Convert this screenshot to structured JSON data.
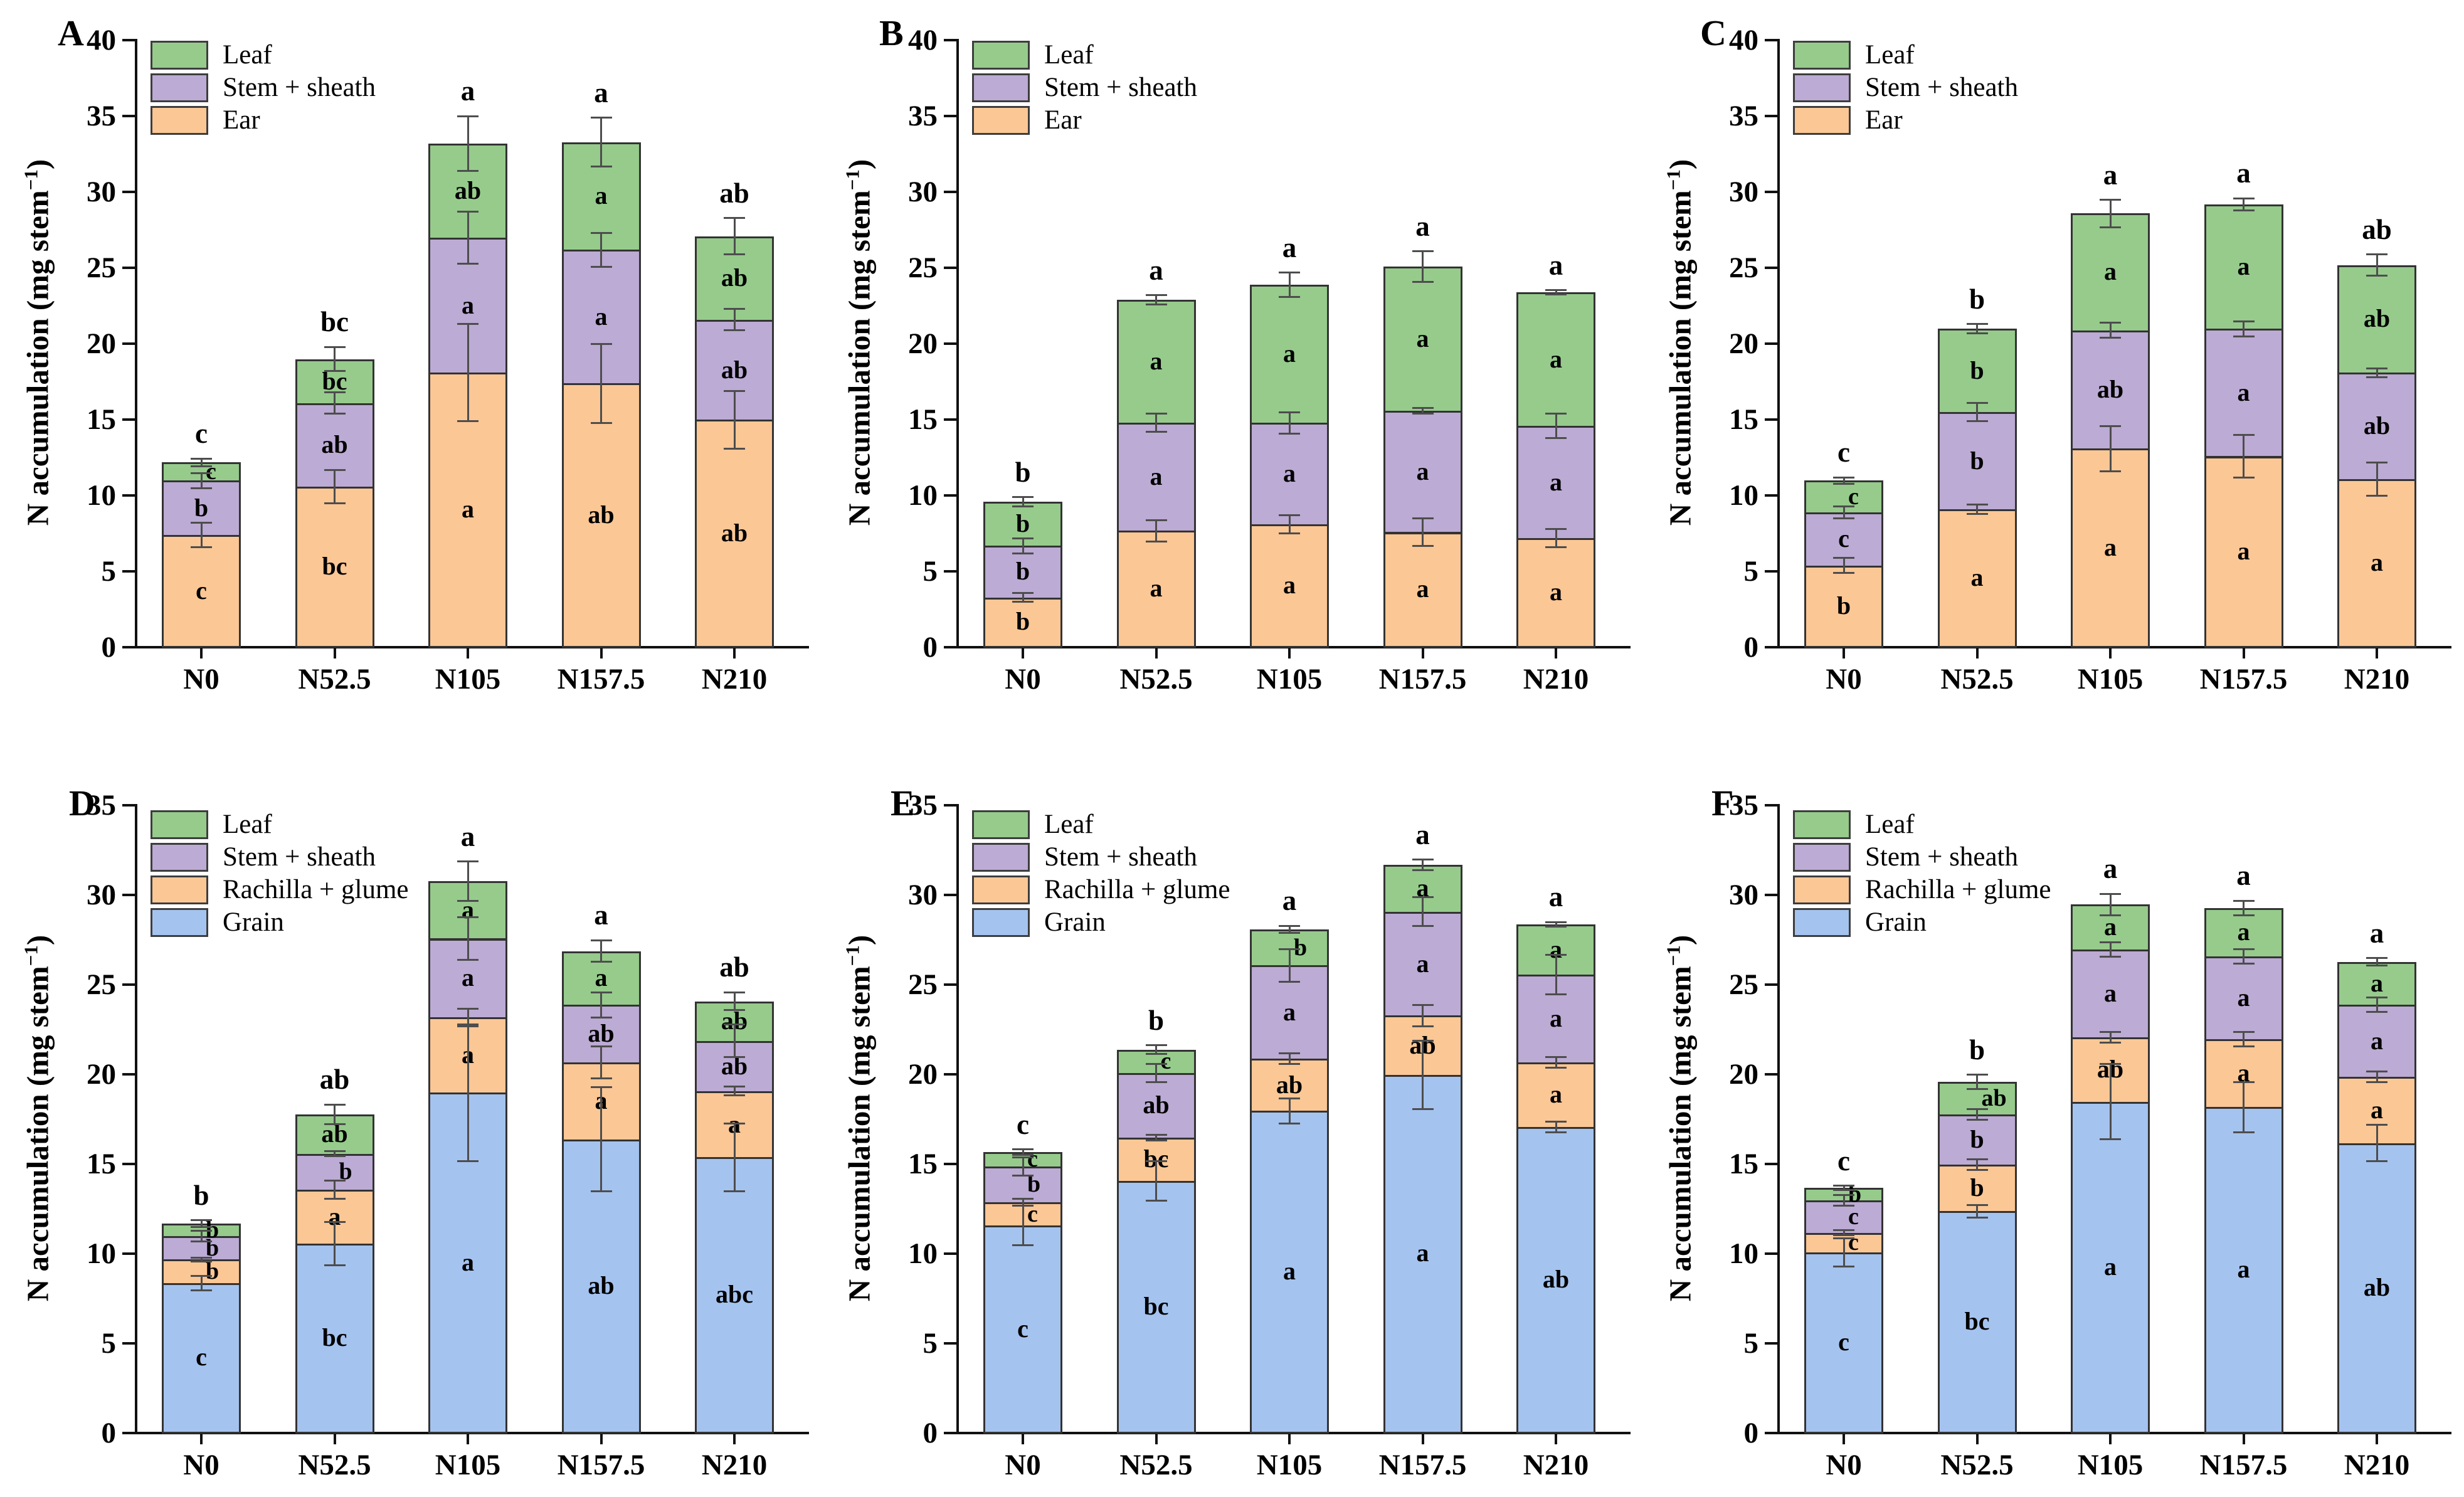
{
  "figure": {
    "background": "#ffffff"
  },
  "colors": {
    "leaf": "#96cb8c",
    "stem_sheath": "#bcabd4",
    "ear": "#fbc795",
    "rachilla_glume": "#fbc795",
    "grain": "#a5c3ef",
    "bar_border": "#333333",
    "axis": "#111111",
    "error_bar": "#4d4d4d",
    "text": "#000000"
  },
  "ylabel": {
    "pre": "N accumulation (mg stem",
    "sup": "−1",
    "post": ")",
    "full": "N accumulation (mg stem⁻¹)"
  },
  "categories": [
    "N0",
    "N52.5",
    "N105",
    "N157.5",
    "N210"
  ],
  "chart_data": [
    {
      "panel": "A",
      "type": "bar",
      "stacked": true,
      "grid": false,
      "ylim": [
        0,
        40
      ],
      "ytick_step": 5,
      "legend_position": "top-left",
      "legend": [
        "Leaf",
        "Stem + sheath",
        "Ear"
      ],
      "categories": [
        "N0",
        "N52.5",
        "N105",
        "N157.5",
        "N210"
      ],
      "series": [
        {
          "name": "Ear",
          "color_key": "ear",
          "values": [
            7.3,
            10.5,
            18.0,
            17.3,
            14.9
          ],
          "errors": [
            0.8,
            1.1,
            3.2,
            2.6,
            1.9
          ],
          "letters": [
            "c",
            "bc",
            "a",
            "ab",
            "ab"
          ]
        },
        {
          "name": "Stem + sheath",
          "color_key": "stem_sheath",
          "values": [
            3.6,
            5.5,
            8.9,
            8.8,
            6.6
          ],
          "errors": [
            0.5,
            0.7,
            1.7,
            1.1,
            0.7
          ],
          "letters": [
            "b",
            "ab",
            "a",
            "a",
            "ab"
          ]
        },
        {
          "name": "Leaf",
          "color_key": "leaf",
          "values": [
            1.2,
            2.9,
            6.2,
            7.1,
            5.5
          ],
          "errors": [
            0.25,
            0.8,
            1.8,
            1.6,
            1.2
          ],
          "letters": [
            "c",
            "bc",
            "ab",
            "a",
            "ab"
          ]
        }
      ],
      "total_values": [
        12.1,
        18.9,
        33.1,
        33.2,
        27.0
      ],
      "total_letters": [
        "c",
        "bc",
        "a",
        "a",
        "ab"
      ]
    },
    {
      "panel": "B",
      "type": "bar",
      "stacked": true,
      "grid": false,
      "ylim": [
        0,
        40
      ],
      "ytick_step": 5,
      "legend_position": "top-left",
      "legend": [
        "Leaf",
        "Stem + sheath",
        "Ear"
      ],
      "categories": [
        "N0",
        "N52.5",
        "N105",
        "N157.5",
        "N210"
      ],
      "series": [
        {
          "name": "Ear",
          "color_key": "ear",
          "values": [
            3.2,
            7.6,
            8.0,
            7.5,
            7.1
          ],
          "errors": [
            0.3,
            0.7,
            0.6,
            0.9,
            0.6
          ],
          "letters": [
            "b",
            "a",
            "a",
            "a",
            "a"
          ]
        },
        {
          "name": "Stem + sheath",
          "color_key": "stem_sheath",
          "values": [
            3.4,
            7.1,
            6.7,
            8.0,
            7.4
          ],
          "errors": [
            0.5,
            0.6,
            0.7,
            0.2,
            0.8
          ],
          "letters": [
            "b",
            "a",
            "a",
            "a",
            "a"
          ]
        },
        {
          "name": "Leaf",
          "color_key": "leaf",
          "values": [
            2.9,
            8.1,
            9.1,
            9.5,
            8.8
          ],
          "errors": [
            0.3,
            0.3,
            0.8,
            1.0,
            0.15
          ],
          "letters": [
            "b",
            "a",
            "a",
            "a",
            "a"
          ]
        }
      ],
      "total_values": [
        9.5,
        22.8,
        23.8,
        25.0,
        23.3
      ],
      "total_letters": [
        "b",
        "a",
        "a",
        "a",
        "a"
      ]
    },
    {
      "panel": "C",
      "type": "bar",
      "stacked": true,
      "grid": false,
      "ylim": [
        0,
        40
      ],
      "ytick_step": 5,
      "legend_position": "top-left",
      "legend": [
        "Leaf",
        "Stem + sheath",
        "Ear"
      ],
      "categories": [
        "N0",
        "N52.5",
        "N105",
        "N157.5",
        "N210"
      ],
      "series": [
        {
          "name": "Ear",
          "color_key": "ear",
          "values": [
            5.3,
            9.0,
            13.0,
            12.5,
            11.0
          ],
          "errors": [
            0.5,
            0.3,
            1.5,
            1.4,
            1.1
          ],
          "letters": [
            "b",
            "a",
            "a",
            "a",
            "a"
          ]
        },
        {
          "name": "Stem + sheath",
          "color_key": "stem_sheath",
          "values": [
            3.5,
            6.4,
            7.8,
            8.4,
            7.0
          ],
          "errors": [
            0.4,
            0.6,
            0.5,
            0.5,
            0.3
          ],
          "letters": [
            "c",
            "b",
            "ab",
            "a",
            "ab"
          ]
        },
        {
          "name": "Leaf",
          "color_key": "leaf",
          "values": [
            2.1,
            5.5,
            7.7,
            8.2,
            7.1
          ],
          "errors": [
            0.2,
            0.3,
            0.9,
            0.4,
            0.7
          ],
          "letters": [
            "c",
            "b",
            "a",
            "a",
            "ab"
          ]
        }
      ],
      "total_values": [
        10.9,
        20.9,
        28.5,
        29.1,
        25.1
      ],
      "total_letters": [
        "c",
        "b",
        "a",
        "a",
        "ab"
      ]
    },
    {
      "panel": "D",
      "type": "bar",
      "stacked": true,
      "grid": false,
      "ylim": [
        0,
        35
      ],
      "ytick_step": 5,
      "legend_position": "top-left",
      "legend": [
        "Leaf",
        "Stem + sheath",
        "Rachilla + glume",
        "Grain"
      ],
      "categories": [
        "N0",
        "N52.5",
        "N105",
        "N157.5",
        "N210"
      ],
      "series": [
        {
          "name": "Grain",
          "color_key": "grain",
          "values": [
            8.3,
            10.5,
            18.9,
            16.3,
            15.3
          ],
          "errors": [
            0.4,
            1.2,
            3.8,
            2.9,
            1.9
          ],
          "letters": [
            "c",
            "bc",
            "a",
            "ab",
            "abc"
          ]
        },
        {
          "name": "Rachilla + glume",
          "color_key": "rachilla_glume",
          "values": [
            1.3,
            3.0,
            4.2,
            4.3,
            3.7
          ],
          "errors": [
            0.12,
            0.5,
            0.5,
            0.9,
            0.25
          ],
          "letters": [
            "b",
            "a",
            "a",
            "a",
            "a"
          ]
        },
        {
          "name": "Stem + sheath",
          "color_key": "stem_sheath",
          "values": [
            1.3,
            2.0,
            4.4,
            3.2,
            2.8
          ],
          "errors": [
            0.3,
            0.15,
            1.2,
            0.7,
            0.9
          ],
          "letters": [
            "b",
            "b",
            "a",
            "ab",
            "ab"
          ]
        },
        {
          "name": "Leaf",
          "color_key": "leaf",
          "values": [
            0.7,
            2.2,
            3.2,
            3.0,
            2.2
          ],
          "errors": [
            0.2,
            0.55,
            1.1,
            0.6,
            0.5
          ],
          "letters": [
            "b",
            "ab",
            "a",
            "a",
            "ab"
          ]
        }
      ],
      "total_values": [
        11.6,
        17.7,
        30.7,
        26.8,
        24.0
      ],
      "total_letters": [
        "b",
        "ab",
        "a",
        "a",
        "ab"
      ]
    },
    {
      "panel": "E",
      "type": "bar",
      "stacked": true,
      "grid": false,
      "ylim": [
        0,
        35
      ],
      "ytick_step": 5,
      "legend_position": "top-left",
      "legend": [
        "Leaf",
        "Stem + sheath",
        "Rachilla + glume",
        "Grain"
      ],
      "categories": [
        "N0",
        "N52.5",
        "N105",
        "N157.5",
        "N210"
      ],
      "series": [
        {
          "name": "Grain",
          "color_key": "grain",
          "values": [
            11.5,
            14.0,
            17.9,
            19.9,
            17.0
          ],
          "errors": [
            1.1,
            1.1,
            0.7,
            1.9,
            0.3
          ],
          "letters": [
            "c",
            "bc",
            "a",
            "a",
            "ab"
          ]
        },
        {
          "name": "Rachilla + glume",
          "color_key": "rachilla_glume",
          "values": [
            1.3,
            2.4,
            2.9,
            3.3,
            3.6
          ],
          "errors": [
            0.2,
            0.15,
            0.3,
            0.6,
            0.3
          ],
          "letters": [
            "c",
            "bc",
            "ab",
            "ab",
            "a"
          ]
        },
        {
          "name": "Stem + sheath",
          "color_key": "stem_sheath",
          "values": [
            2.0,
            3.6,
            5.2,
            5.8,
            4.9
          ],
          "errors": [
            0.5,
            0.5,
            0.9,
            0.8,
            1.1
          ],
          "letters": [
            "b",
            "ab",
            "a",
            "a",
            "a"
          ]
        },
        {
          "name": "Leaf",
          "color_key": "leaf",
          "values": [
            0.8,
            1.3,
            2.0,
            2.6,
            2.8
          ],
          "errors": [
            0.15,
            0.25,
            0.2,
            0.3,
            0.12
          ],
          "letters": [
            "c",
            "c",
            "b",
            "a",
            "a"
          ]
        }
      ],
      "total_values": [
        15.6,
        21.3,
        28.0,
        31.6,
        28.3
      ],
      "total_letters": [
        "c",
        "b",
        "a",
        "a",
        "a"
      ]
    },
    {
      "panel": "F",
      "type": "bar",
      "stacked": true,
      "grid": false,
      "ylim": [
        0,
        35
      ],
      "ytick_step": 5,
      "legend_position": "top-left",
      "legend": [
        "Leaf",
        "Stem + sheath",
        "Rachilla + glume",
        "Grain"
      ],
      "categories": [
        "N0",
        "N52.5",
        "N105",
        "N157.5",
        "N210"
      ],
      "series": [
        {
          "name": "Grain",
          "color_key": "grain",
          "values": [
            10.0,
            12.3,
            18.4,
            18.1,
            16.1
          ],
          "errors": [
            0.8,
            0.35,
            2.1,
            1.4,
            1.0
          ],
          "letters": [
            "c",
            "bc",
            "a",
            "a",
            "ab"
          ]
        },
        {
          "name": "Rachilla + glume",
          "color_key": "rachilla_glume",
          "values": [
            1.1,
            2.6,
            3.6,
            3.8,
            3.7
          ],
          "errors": [
            0.15,
            0.3,
            0.3,
            0.4,
            0.3
          ],
          "letters": [
            "c",
            "b",
            "ab",
            "a",
            "a"
          ]
        },
        {
          "name": "Stem + sheath",
          "color_key": "stem_sheath",
          "values": [
            1.8,
            2.8,
            4.9,
            4.6,
            4.0
          ],
          "errors": [
            0.3,
            0.3,
            0.4,
            0.4,
            0.4
          ],
          "letters": [
            "c",
            "b",
            "a",
            "a",
            "a"
          ]
        },
        {
          "name": "Leaf",
          "color_key": "leaf",
          "values": [
            0.7,
            1.8,
            2.5,
            2.7,
            2.4
          ],
          "errors": [
            0.12,
            0.4,
            0.6,
            0.4,
            0.2
          ],
          "letters": [
            "b",
            "ab",
            "a",
            "a",
            "a"
          ]
        }
      ],
      "total_values": [
        13.6,
        19.5,
        29.4,
        29.2,
        26.2
      ],
      "total_letters": [
        "c",
        "b",
        "a",
        "a",
        "a"
      ]
    }
  ]
}
